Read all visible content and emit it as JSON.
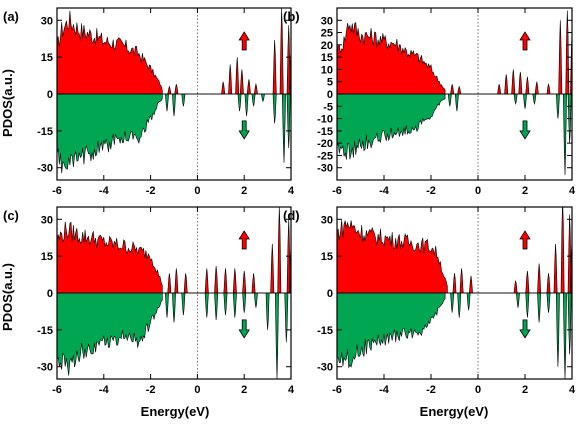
{
  "figure": {
    "ylabel": "PDOS(a.u.)",
    "xlabel": "Energy(eV)"
  },
  "colors": {
    "spin_up": "#ff0000",
    "spin_down": "#00a651",
    "outline": "#000000",
    "fermi_line": "#555555"
  },
  "chart_data": [
    {
      "type": "area",
      "panel_label": "(a)",
      "xlim": [
        -6,
        4
      ],
      "ylim": [
        -35,
        35
      ],
      "xticks": [
        "-6",
        "-4",
        "-2",
        "0",
        "2",
        "4"
      ],
      "yticks": [
        "30",
        "15",
        "0",
        "-15",
        "-30"
      ],
      "fermi_level": 0,
      "spin_up": {
        "envelope": [
          [
            -6,
            22
          ],
          [
            -5.8,
            30
          ],
          [
            -5.5,
            35
          ],
          [
            -5,
            30
          ],
          [
            -4.5,
            28
          ],
          [
            -4,
            25
          ],
          [
            -3.5,
            24
          ],
          [
            -3,
            22
          ],
          [
            -2.5,
            19
          ],
          [
            -2,
            12
          ],
          [
            -1.6,
            5
          ],
          [
            -1.5,
            2
          ]
        ],
        "peaks": [
          [
            -1.2,
            3
          ],
          [
            -0.9,
            4
          ],
          [
            1.1,
            5
          ],
          [
            1.4,
            12
          ],
          [
            1.7,
            15
          ],
          [
            1.9,
            10
          ],
          [
            2.2,
            6
          ],
          [
            2.5,
            4
          ],
          [
            3.3,
            22
          ],
          [
            3.6,
            35
          ],
          [
            3.9,
            28
          ],
          [
            4.0,
            18
          ]
        ]
      },
      "spin_down": {
        "envelope": [
          [
            -6,
            -30
          ],
          [
            -5.6,
            -35
          ],
          [
            -5,
            -30
          ],
          [
            -4.5,
            -27
          ],
          [
            -4,
            -25
          ],
          [
            -3.5,
            -22
          ],
          [
            -3,
            -20
          ],
          [
            -2.5,
            -20
          ],
          [
            -2,
            -12
          ],
          [
            -1.7,
            -5
          ],
          [
            -1.5,
            -2
          ]
        ],
        "peaks": [
          [
            -1.3,
            -7
          ],
          [
            -1.0,
            -9
          ],
          [
            -0.6,
            -5
          ],
          [
            1.8,
            -7
          ],
          [
            2.1,
            -9
          ],
          [
            2.4,
            -5
          ],
          [
            2.8,
            -3
          ],
          [
            3.3,
            -12
          ],
          [
            3.7,
            -28
          ],
          [
            3.9,
            -22
          ]
        ]
      },
      "arrows": {
        "up_label": "↑",
        "down_label": "↓"
      }
    },
    {
      "type": "area",
      "panel_label": "(b)",
      "xlim": [
        -6,
        4
      ],
      "ylim": [
        -35,
        35
      ],
      "xticks": [
        "-6",
        "-4",
        "-2",
        "0",
        "2",
        "4"
      ],
      "yticks": [
        "30",
        "25",
        "20",
        "15",
        "10",
        "5",
        "0",
        "-5",
        "-10",
        "-15",
        "-20",
        "-25",
        "-30"
      ],
      "fermi_level": 0,
      "spin_up": {
        "envelope": [
          [
            -6,
            20
          ],
          [
            -5.7,
            25
          ],
          [
            -5.5,
            34
          ],
          [
            -5,
            28
          ],
          [
            -4.5,
            27
          ],
          [
            -4,
            25
          ],
          [
            -3.5,
            24
          ],
          [
            -3,
            20
          ],
          [
            -2.5,
            17
          ],
          [
            -2,
            12
          ],
          [
            -1.6,
            5
          ],
          [
            -1.4,
            2
          ]
        ],
        "peaks": [
          [
            -1.1,
            4
          ],
          [
            -0.8,
            3
          ],
          [
            0.9,
            4
          ],
          [
            1.2,
            8
          ],
          [
            1.5,
            10
          ],
          [
            1.8,
            9
          ],
          [
            2.1,
            7
          ],
          [
            2.5,
            5
          ],
          [
            3.0,
            4
          ],
          [
            3.5,
            30
          ],
          [
            3.8,
            34
          ],
          [
            4.0,
            25
          ]
        ]
      },
      "spin_down": {
        "envelope": [
          [
            -6,
            -25
          ],
          [
            -5.6,
            -28
          ],
          [
            -5,
            -24
          ],
          [
            -4.5,
            -22
          ],
          [
            -4,
            -20
          ],
          [
            -3.5,
            -18
          ],
          [
            -3,
            -17
          ],
          [
            -2.5,
            -15
          ],
          [
            -2,
            -10
          ],
          [
            -1.6,
            -4
          ],
          [
            -1.4,
            -2
          ]
        ],
        "peaks": [
          [
            -1.2,
            -5
          ],
          [
            -0.9,
            -7
          ],
          [
            1.6,
            -4
          ],
          [
            2.0,
            -6
          ],
          [
            2.4,
            -4
          ],
          [
            3.4,
            -10
          ],
          [
            3.7,
            -33
          ],
          [
            3.9,
            -20
          ]
        ]
      },
      "arrows": {
        "up_label": "↑",
        "down_label": "↓"
      }
    },
    {
      "type": "area",
      "panel_label": "(c)",
      "xlim": [
        -6,
        4
      ],
      "ylim": [
        -35,
        35
      ],
      "xticks": [
        "-6",
        "-4",
        "-2",
        "0",
        "2",
        "4"
      ],
      "yticks": [
        "30",
        "15",
        "0",
        "-15",
        "-30"
      ],
      "fermi_level": 0,
      "spin_up": {
        "envelope": [
          [
            -6,
            25
          ],
          [
            -5.6,
            30
          ],
          [
            -5,
            27
          ],
          [
            -4.5,
            26
          ],
          [
            -4,
            24
          ],
          [
            -3.5,
            23
          ],
          [
            -3,
            22
          ],
          [
            -2.5,
            20
          ],
          [
            -2,
            18
          ],
          [
            -1.7,
            10
          ],
          [
            -1.5,
            4
          ]
        ],
        "peaks": [
          [
            -1.2,
            8
          ],
          [
            -0.9,
            10
          ],
          [
            -0.5,
            8
          ],
          [
            0.4,
            10
          ],
          [
            0.8,
            11
          ],
          [
            1.2,
            10
          ],
          [
            1.6,
            10
          ],
          [
            2.0,
            9
          ],
          [
            2.4,
            8
          ],
          [
            3.2,
            20
          ],
          [
            3.5,
            35
          ],
          [
            3.9,
            30
          ],
          [
            4.0,
            20
          ]
        ]
      },
      "spin_down": {
        "envelope": [
          [
            -6,
            -30
          ],
          [
            -5.6,
            -35
          ],
          [
            -5,
            -28
          ],
          [
            -4.5,
            -25
          ],
          [
            -4,
            -23
          ],
          [
            -3.5,
            -22
          ],
          [
            -3,
            -20
          ],
          [
            -2.5,
            -24
          ],
          [
            -2,
            -14
          ],
          [
            -1.7,
            -8
          ],
          [
            -1.5,
            -3
          ]
        ],
        "peaks": [
          [
            -1.3,
            -10
          ],
          [
            -1.0,
            -12
          ],
          [
            -0.6,
            -9
          ],
          [
            0.4,
            -10
          ],
          [
            0.8,
            -11
          ],
          [
            1.2,
            -9
          ],
          [
            1.6,
            -10
          ],
          [
            2.0,
            -8
          ],
          [
            2.5,
            -6
          ],
          [
            3.0,
            -15
          ],
          [
            3.4,
            -35
          ],
          [
            3.8,
            -20
          ]
        ]
      },
      "arrows": {
        "up_label": "↑",
        "down_label": "↓"
      }
    },
    {
      "type": "area",
      "panel_label": "(d)",
      "xlim": [
        -6,
        4
      ],
      "ylim": [
        -35,
        35
      ],
      "xticks": [
        "-6",
        "-4",
        "-2",
        "0",
        "2",
        "4"
      ],
      "yticks": [
        "30",
        "15",
        "0",
        "-15",
        "-30"
      ],
      "fermi_level": 0,
      "spin_up": {
        "envelope": [
          [
            -6,
            28
          ],
          [
            -5.6,
            33
          ],
          [
            -5,
            29
          ],
          [
            -4.5,
            27
          ],
          [
            -4,
            26
          ],
          [
            -3.5,
            25
          ],
          [
            -3,
            24
          ],
          [
            -2.5,
            23
          ],
          [
            -2,
            22
          ],
          [
            -1.7,
            18
          ],
          [
            -1.5,
            10
          ],
          [
            -1.3,
            3
          ]
        ],
        "peaks": [
          [
            -1.0,
            8
          ],
          [
            -0.7,
            10
          ],
          [
            -0.3,
            7
          ],
          [
            1.6,
            5
          ],
          [
            2.1,
            9
          ],
          [
            2.6,
            12
          ],
          [
            3.0,
            8
          ],
          [
            3.3,
            20
          ],
          [
            3.6,
            38
          ],
          [
            3.9,
            32
          ],
          [
            4.0,
            22
          ]
        ]
      },
      "spin_down": {
        "envelope": [
          [
            -6,
            -28
          ],
          [
            -5.6,
            -32
          ],
          [
            -5,
            -27
          ],
          [
            -4.5,
            -24
          ],
          [
            -4,
            -22
          ],
          [
            -3.5,
            -20
          ],
          [
            -3,
            -19
          ],
          [
            -2.5,
            -18
          ],
          [
            -2,
            -14
          ],
          [
            -1.7,
            -8
          ],
          [
            -1.4,
            -3
          ]
        ],
        "peaks": [
          [
            -1.1,
            -8
          ],
          [
            -0.8,
            -10
          ],
          [
            -0.4,
            -7
          ],
          [
            1.7,
            -6
          ],
          [
            2.1,
            -10
          ],
          [
            2.6,
            -12
          ],
          [
            3.0,
            -8
          ],
          [
            3.4,
            -30
          ],
          [
            3.7,
            -35
          ],
          [
            3.9,
            -25
          ]
        ]
      },
      "arrows": {
        "up_label": "↑",
        "down_label": "↓"
      }
    }
  ]
}
